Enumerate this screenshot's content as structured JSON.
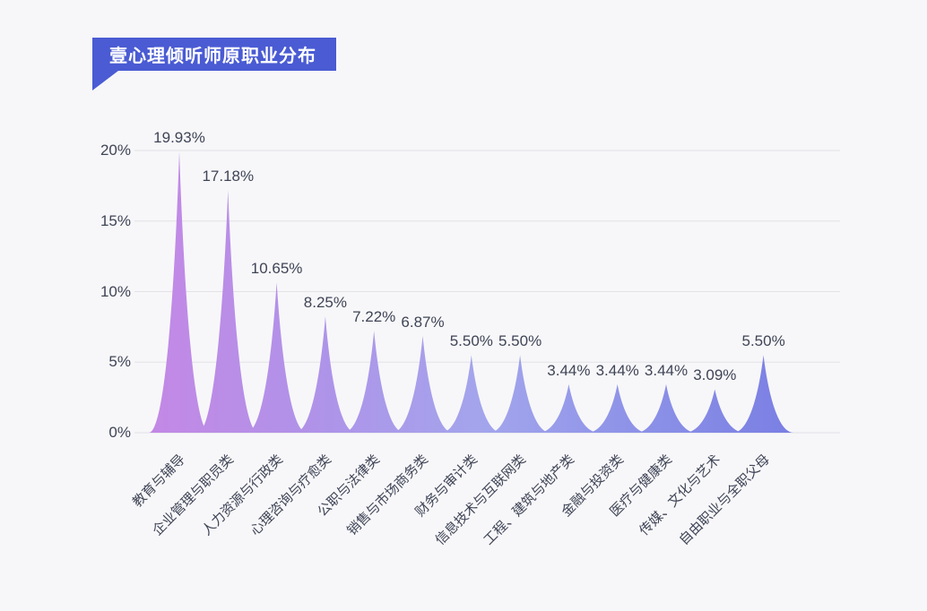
{
  "title_badge": {
    "text": "壹心理倾听师原职业分布",
    "bg_color": "#4a5bd3",
    "text_color": "#ffffff"
  },
  "chart_data": {
    "type": "area",
    "variant": "peak-spike-bars",
    "title": "壹心理倾听师原职业分布",
    "categories": [
      "教育与辅导",
      "企业管理与职员类",
      "人力资源与行政类",
      "心理咨询与疗愈类",
      "公职与法律类",
      "销售与市场商务类",
      "财务与审计类",
      "信息技术与互联网类",
      "工程、建筑与地产类",
      "金融与投资类",
      "医疗与健康类",
      "传媒、文化与艺术",
      "自由职业与全职父母"
    ],
    "values": [
      19.93,
      17.18,
      10.65,
      8.25,
      7.22,
      6.87,
      5.5,
      5.5,
      3.44,
      3.44,
      3.44,
      3.09,
      5.5
    ],
    "value_labels": [
      "19.93%",
      "17.18%",
      "10.65%",
      "8.25%",
      "7.22%",
      "6.87%",
      "5.50%",
      "5.50%",
      "3.44%",
      "3.44%",
      "3.44%",
      "3.09%",
      "5.50%"
    ],
    "xlabel": "",
    "ylabel": "",
    "y_ticks": [
      "0%",
      "5%",
      "10%",
      "15%",
      "20%"
    ],
    "y_tick_values": [
      0,
      5,
      10,
      15,
      20
    ],
    "ylim": [
      0,
      20
    ],
    "grid": true,
    "legend": "none",
    "x_label_rotation_deg": 45,
    "colors": {
      "gradient_stops": [
        {
          "offset": 0.0,
          "color": "#c388e5"
        },
        {
          "offset": 0.28,
          "color": "#ae94e9"
        },
        {
          "offset": 0.52,
          "color": "#a3a5ec"
        },
        {
          "offset": 0.78,
          "color": "#8b90e7"
        },
        {
          "offset": 1.0,
          "color": "#7a7fe3"
        }
      ],
      "grid_line": "#e2e2e8",
      "axis_text": "#3f4456",
      "value_text": "#3f4456",
      "background": "#f7f7f9"
    }
  }
}
